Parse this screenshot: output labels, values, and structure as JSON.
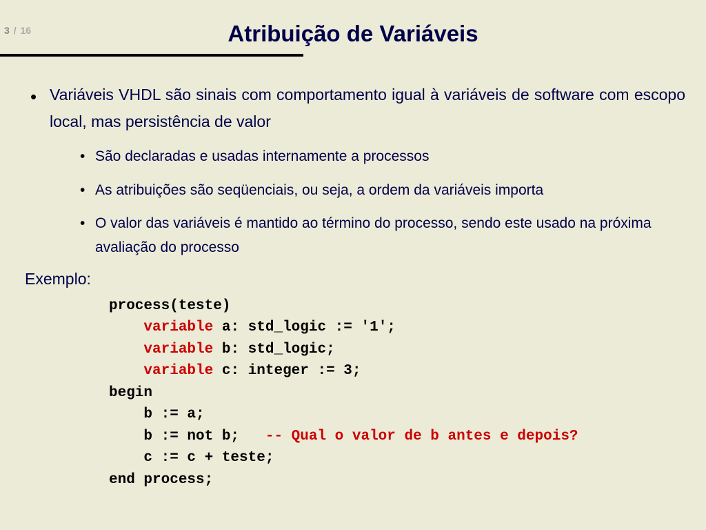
{
  "page": {
    "current": "3",
    "separator": "/",
    "total": "16"
  },
  "title": "Atribuição de Variáveis",
  "bullets": {
    "main": "Variáveis VHDL são sinais com comportamento igual à variáveis de software com escopo local, mas persistência de valor",
    "sub1": "São declaradas e usadas internamente a processos",
    "sub2": "As atribuições são seqüenciais, ou seja, a ordem da variáveis importa",
    "sub3": "O valor das variáveis é mantido ao término do processo, sendo este usado na próxima avaliação do processo"
  },
  "example_label": "Exemplo:",
  "code": {
    "l1": "process(teste)",
    "kw": "variable",
    "v1": " a: std_logic := '1';",
    "v2": " b: std_logic;",
    "v3": " c: integer := 3;",
    "l5": "begin",
    "l6": "    b := a;",
    "l7a": "    b := not b;   ",
    "l7c": "-- Qual o valor de b antes e depois?",
    "l8": "    c := c + teste;",
    "l9": "end process;"
  },
  "colors": {
    "background": "#ebebd8",
    "text_primary": "#00004a",
    "bullet": "#000000",
    "code_keyword": "#cc0000",
    "code_text": "#000000",
    "page_num": "#888888"
  }
}
